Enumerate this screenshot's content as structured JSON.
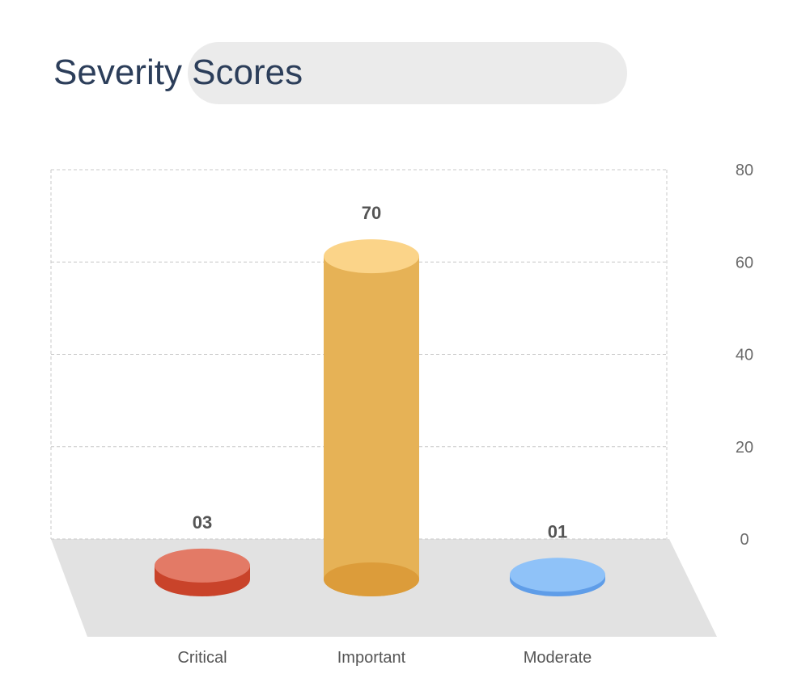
{
  "header": {
    "title": "Severity Scores"
  },
  "chart_data": {
    "type": "bar",
    "title": "Severity Scores",
    "categories": [
      "Critical",
      "Important",
      "Moderate"
    ],
    "values": [
      3,
      70,
      1
    ],
    "value_labels": [
      "03",
      "70",
      "01"
    ],
    "ylim": [
      0,
      80
    ],
    "yticks": [
      "0",
      "20",
      "40",
      "60",
      "80"
    ],
    "xlabel": "",
    "ylabel": "",
    "grid": true,
    "colors": {
      "Critical": {
        "side": "#c9432a",
        "top": "#e37a66"
      },
      "Important": {
        "side": "#e6b256",
        "top": "#fbd489",
        "bottom": "#dc9c3a"
      },
      "Moderate": {
        "side": "#5f9de8",
        "top": "#8fc2f8"
      }
    },
    "floor_color": "#e2e2e2",
    "grid_color": "#c8c8c8"
  }
}
